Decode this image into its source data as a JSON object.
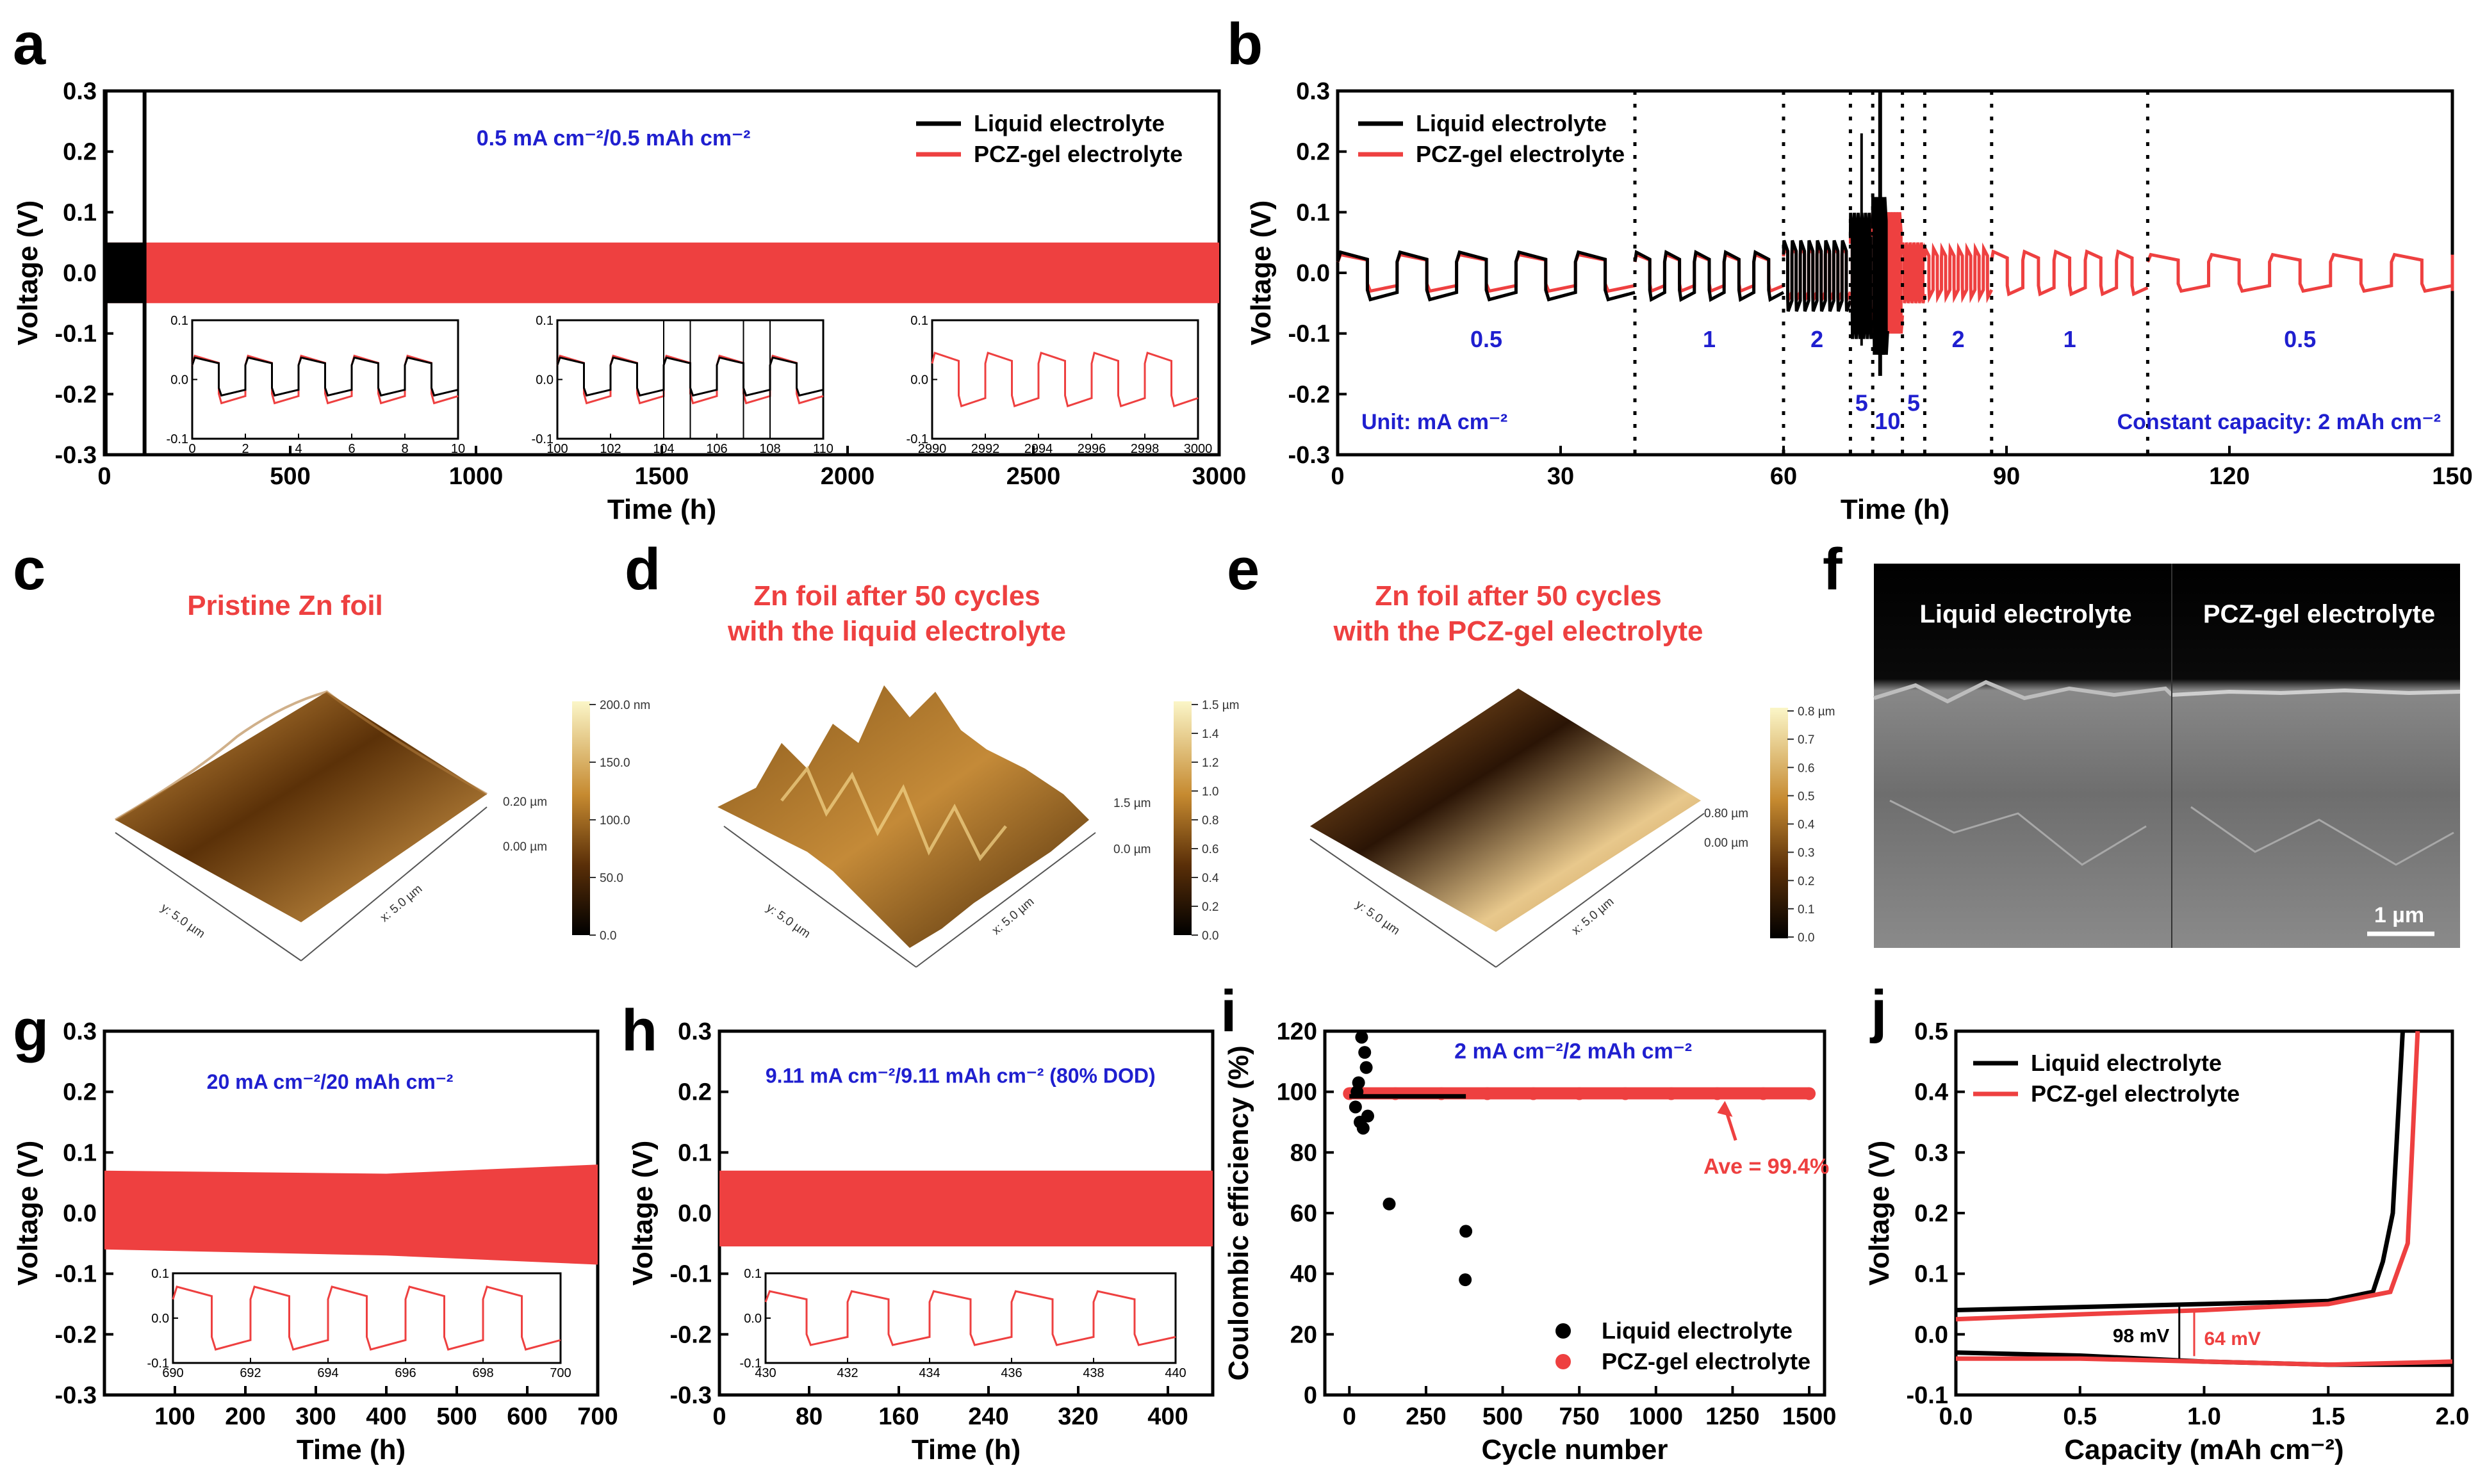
{
  "colors": {
    "liquid": "#000000",
    "gel": "#ee4040",
    "blue_note": "#1f1fcf",
    "red_note": "#ee4040"
  },
  "panel_labels": [
    "a",
    "b",
    "c",
    "d",
    "e",
    "f",
    "g",
    "h",
    "i",
    "j"
  ],
  "chart_data": [
    {
      "id": "a",
      "type": "line",
      "xlabel": "Time (h)",
      "ylabel": "Voltage (V)",
      "xlim": [
        0,
        3000
      ],
      "ylim": [
        -0.3,
        0.3
      ],
      "xticks": [
        "0",
        "500",
        "1000",
        "1500",
        "2000",
        "2500",
        "3000"
      ],
      "yticks": [
        "-0.3",
        "-0.2",
        "-0.1",
        "0.0",
        "0.1",
        "0.2",
        "0.3"
      ],
      "legend": [
        "Liquid electrolyte",
        "PCZ-gel electrolyte"
      ],
      "annotation": "0.5 mA cm⁻²/0.5 mAh cm⁻²",
      "series": [
        {
          "name": "Liquid electrolyte",
          "x_range": [
            0,
            108
          ],
          "band": [
            -0.05,
            0.05
          ],
          "short_circuit_h": 108
        },
        {
          "name": "PCZ-gel electrolyte",
          "x_range": [
            0,
            3000
          ],
          "band": [
            -0.05,
            0.05
          ]
        }
      ],
      "insets": [
        {
          "xlim": [
            0,
            10
          ],
          "xticks": [
            "0",
            "2",
            "4",
            "6",
            "8",
            "10"
          ],
          "yticks": [
            "-0.1",
            "0.0",
            "0.1"
          ],
          "ylim": [
            -0.1,
            0.1
          ],
          "period_h": 2,
          "amp": 0.04,
          "liquid": true
        },
        {
          "xlim": [
            100,
            110
          ],
          "xticks": [
            "100",
            "102",
            "104",
            "106",
            "108",
            "110"
          ],
          "yticks": [
            "-0.1",
            "0.0",
            "0.1"
          ],
          "ylim": [
            -0.1,
            0.1
          ],
          "period_h": 2,
          "amp": 0.04,
          "liquid": true
        },
        {
          "xlim": [
            2990,
            3000
          ],
          "xticks": [
            "2990",
            "2992",
            "2994",
            "2996",
            "2998",
            "3000"
          ],
          "yticks": [
            "-0.1",
            "0.0",
            "0.1"
          ],
          "ylim": [
            -0.1,
            0.1
          ],
          "period_h": 2,
          "amp": 0.045,
          "liquid": false
        }
      ]
    },
    {
      "id": "b",
      "type": "line",
      "xlabel": "Time (h)",
      "ylabel": "Voltage (V)",
      "xlim": [
        0,
        150
      ],
      "ylim": [
        -0.3,
        0.3
      ],
      "xticks": [
        "0",
        "30",
        "60",
        "90",
        "120",
        "150"
      ],
      "yticks": [
        "-0.3",
        "-0.2",
        "-0.1",
        "0.0",
        "0.1",
        "0.2",
        "0.3"
      ],
      "legend": [
        "Liquid electrolyte",
        "PCZ-gel electrolyte"
      ],
      "unit_note": "Unit: mA cm⁻²",
      "capacity_note": "Constant capacity: 2 mAh cm⁻²",
      "dividers_h": [
        40,
        60,
        69,
        72,
        76,
        79,
        88,
        109
      ],
      "segments": [
        {
          "label": "0.5",
          "start": 0,
          "end": 40,
          "amp": 0.03
        },
        {
          "label": "1",
          "start": 40,
          "end": 60,
          "amp": 0.03
        },
        {
          "label": "2",
          "start": 60,
          "end": 69,
          "amp": 0.045
        },
        {
          "label": "5",
          "start": 69,
          "end": 72,
          "amp": 0.08
        },
        {
          "label": "10",
          "start": 72,
          "end": 76,
          "amp": 0.1
        },
        {
          "label": "5",
          "start": 76,
          "end": 79,
          "amp": 0.05
        },
        {
          "label": "2",
          "start": 79,
          "end": 88,
          "amp": 0.04
        },
        {
          "label": "1",
          "start": 88,
          "end": 109,
          "amp": 0.035
        },
        {
          "label": "0.5",
          "start": 109,
          "end": 150,
          "amp": 0.03
        }
      ],
      "liquid_end_h": 74
    },
    {
      "id": "g",
      "type": "line",
      "xlabel": "Time (h)",
      "ylabel": "Voltage (V)",
      "xlim": [
        0,
        700
      ],
      "ylim": [
        -0.3,
        0.3
      ],
      "xticks": [
        "100",
        "200",
        "300",
        "400",
        "500",
        "600",
        "700"
      ],
      "yticks": [
        "-0.3",
        "-0.2",
        "-0.1",
        "0.0",
        "0.1",
        "0.2",
        "0.3"
      ],
      "annotation": "20 mA cm⁻²/20 mAh cm⁻²",
      "band": [
        -0.06,
        0.07
      ],
      "inset": {
        "xlim": [
          690,
          700
        ],
        "xticks": [
          "690",
          "692",
          "694",
          "696",
          "698",
          "700"
        ],
        "yticks": [
          "-0.1",
          "0.0",
          "0.1"
        ],
        "period_h": 2,
        "amp": 0.07
      }
    },
    {
      "id": "h",
      "type": "line",
      "xlabel": "Time (h)",
      "ylabel": "Voltage (V)",
      "xlim": [
        0,
        440
      ],
      "ylim": [
        -0.3,
        0.3
      ],
      "xticks": [
        "0",
        "80",
        "160",
        "240",
        "320",
        "400"
      ],
      "yticks": [
        "-0.3",
        "-0.2",
        "-0.1",
        "0.0",
        "0.1",
        "0.2",
        "0.3"
      ],
      "annotation": "9.11 mA cm⁻²/9.11 mAh cm⁻² (80% DOD)",
      "band": [
        -0.055,
        0.07
      ],
      "inset": {
        "xlim": [
          430,
          440
        ],
        "xticks": [
          "430",
          "432",
          "434",
          "436",
          "438",
          "440"
        ],
        "yticks": [
          "-0.1",
          "0.0",
          "0.1"
        ],
        "period_h": 2,
        "amp": 0.06
      }
    },
    {
      "id": "i",
      "type": "scatter",
      "xlabel": "Cycle number",
      "ylabel": "Coulombic efficiency (%)",
      "xlim": [
        -80,
        1550
      ],
      "ylim": [
        0,
        120
      ],
      "xticks": [
        "0",
        "250",
        "500",
        "750",
        "1000",
        "1250",
        "1500"
      ],
      "yticks": [
        "0",
        "20",
        "40",
        "60",
        "80",
        "100",
        "120"
      ],
      "annotation": "2 mA cm⁻²/2 mAh cm⁻²",
      "average_note": "Ave = 99.4%",
      "legend": [
        "Liquid electrolyte",
        "PCZ-gel electrolyte"
      ],
      "liquid_outliers": [
        [
          40,
          118
        ],
        [
          50,
          113
        ],
        [
          55,
          108
        ],
        [
          30,
          103
        ],
        [
          45,
          88
        ],
        [
          60,
          92
        ],
        [
          130,
          63
        ],
        [
          380,
          54
        ],
        [
          378,
          38
        ],
        [
          20,
          95
        ],
        [
          35,
          90
        ],
        [
          25,
          100
        ]
      ],
      "liquid_cycles": 380,
      "gel_cycles": 1500,
      "gel_mean": 99.4
    },
    {
      "id": "j",
      "type": "line",
      "xlabel": "Capacity (mAh cm⁻²)",
      "ylabel": "Voltage (V)",
      "xlim": [
        0,
        2.0
      ],
      "ylim": [
        -0.1,
        0.5
      ],
      "xticks": [
        "0.0",
        "0.5",
        "1.0",
        "1.5",
        "2.0"
      ],
      "yticks": [
        "-0.1",
        "0.0",
        "0.1",
        "0.2",
        "0.3",
        "0.4",
        "0.5"
      ],
      "legend": [
        "Liquid electrolyte",
        "PCZ-gel electrolyte"
      ],
      "annotations": [
        "98 mV",
        "64 mV"
      ],
      "series": [
        {
          "name": "Liquid electrolyte",
          "charge": [
            [
              0,
              0.04
            ],
            [
              0.5,
              0.045
            ],
            [
              1.0,
              0.05
            ],
            [
              1.5,
              0.055
            ],
            [
              1.68,
              0.07
            ],
            [
              1.72,
              0.12
            ],
            [
              1.76,
              0.2
            ],
            [
              1.8,
              0.5
            ]
          ],
          "discharge": [
            [
              0,
              -0.03
            ],
            [
              0.5,
              -0.035
            ],
            [
              1.0,
              -0.045
            ],
            [
              1.5,
              -0.05
            ],
            [
              2.0,
              -0.05
            ]
          ]
        },
        {
          "name": "PCZ-gel electrolyte",
          "charge": [
            [
              0,
              0.025
            ],
            [
              0.5,
              0.033
            ],
            [
              1.0,
              0.04
            ],
            [
              1.5,
              0.05
            ],
            [
              1.75,
              0.07
            ],
            [
              1.82,
              0.15
            ],
            [
              1.86,
              0.5
            ]
          ],
          "discharge": [
            [
              0,
              -0.04
            ],
            [
              0.5,
              -0.04
            ],
            [
              1.0,
              -0.045
            ],
            [
              1.5,
              -0.05
            ],
            [
              2.0,
              -0.045
            ]
          ]
        }
      ]
    }
  ],
  "afm": [
    {
      "id": "c",
      "title_lines": [
        "Pristine Zn foil"
      ],
      "colorbar_ticks": [
        "200.0 nm",
        "150.0",
        "100.0",
        "50.0",
        "0.0"
      ],
      "z_ticks": [
        "0.20 µm",
        "0.00 µm"
      ],
      "y_axis": "y: 5.0 µm",
      "x_axis": "x: 5.0 µm"
    },
    {
      "id": "d",
      "title_lines": [
        "Zn foil after 50 cycles",
        "with the liquid electrolyte"
      ],
      "colorbar_ticks": [
        "1.5 µm",
        "1.4",
        "1.2",
        "1.0",
        "0.8",
        "0.6",
        "0.4",
        "0.2",
        "0.0"
      ],
      "z_ticks": [
        "1.5 µm",
        "0.0 µm"
      ],
      "y_axis": "y: 5.0 µm",
      "x_axis": "x: 5.0 µm"
    },
    {
      "id": "e",
      "title_lines": [
        "Zn foil after 50 cycles",
        "with the PCZ-gel electrolyte"
      ],
      "colorbar_ticks": [
        "0.8 µm",
        "0.7",
        "0.6",
        "0.5",
        "0.4",
        "0.3",
        "0.2",
        "0.1",
        "0.0"
      ],
      "z_ticks": [
        "0.80 µm",
        "0.00 µm"
      ],
      "y_axis": "y: 5.0 µm",
      "x_axis": "x: 5.0 µm"
    }
  ],
  "sem": {
    "left_label": "Liquid electrolyte",
    "right_label": "PCZ-gel electrolyte",
    "scale": "1 µm"
  }
}
